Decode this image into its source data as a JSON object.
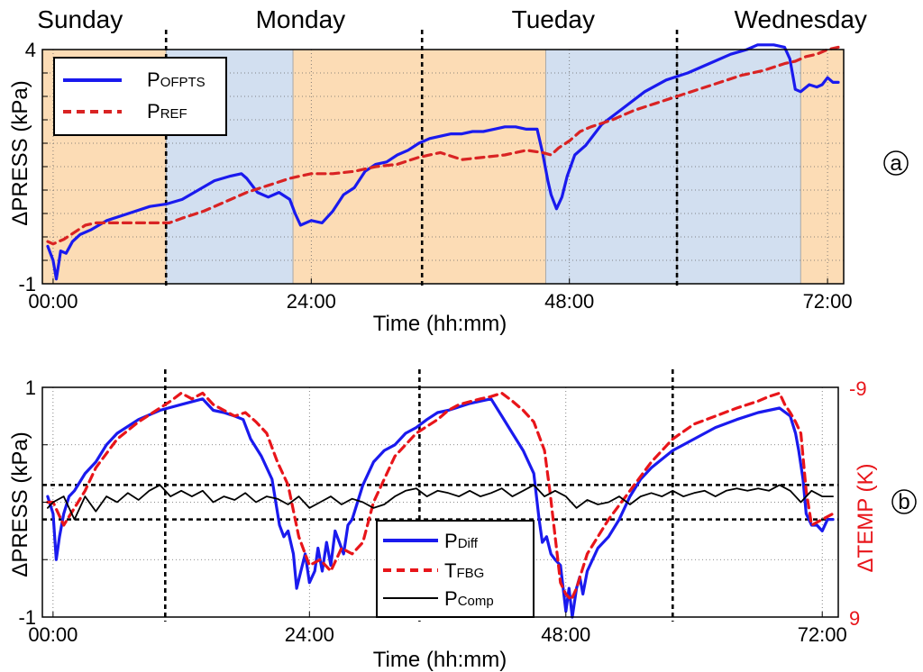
{
  "chart_data": [
    {
      "type": "line",
      "panel_label": "a",
      "xlabel": "Time (hh:mm)",
      "ylabel": "ΔPRESS (kPa)",
      "xlim": [
        -1,
        73.5
      ],
      "ylim": [
        -1,
        4
      ],
      "x_ticks": [
        0,
        24,
        48,
        72
      ],
      "x_tick_labels": [
        "00:00",
        "24:00",
        "48:00",
        "72:00"
      ],
      "y_tick_labels": [
        {
          "v": 4,
          "label": "4"
        },
        {
          "v": -1,
          "label": "-1"
        }
      ],
      "y_grid": [
        -1,
        -0.5,
        0,
        0.5,
        1,
        1.5,
        2,
        2.5,
        3,
        3.5,
        4
      ],
      "day_labels": [
        {
          "x": 2.5,
          "label": "Sunday"
        },
        {
          "x": 23,
          "label": "Monday"
        },
        {
          "x": 46.5,
          "label": "Tueday"
        },
        {
          "x": 69.5,
          "label": "Wednesday"
        }
      ],
      "day_boundaries": [
        10.5,
        34.3,
        58
      ],
      "shading": [
        {
          "x0": -1,
          "x1": 10.5,
          "color": "#fcdcb5"
        },
        {
          "x0": 10.5,
          "x1": 22.3,
          "color": "#d2dff0"
        },
        {
          "x0": 22.3,
          "x1": 45.8,
          "color": "#fcdcb5"
        },
        {
          "x0": 45.8,
          "x1": 58,
          "color": "#d2dff0"
        },
        {
          "x0": 58,
          "x1": 69.5,
          "color": "#d2dff0"
        },
        {
          "x0": 69.5,
          "x1": 73.5,
          "color": "#fcdcb5"
        }
      ],
      "legend_position": "top-left",
      "series": [
        {
          "name_main": "P",
          "name_sub": "OFPTS",
          "color": "#1a1aee",
          "dash": "solid",
          "x": [
            -0.5,
            0,
            0.3,
            0.7,
            1.2,
            1.8,
            2.5,
            3.5,
            5,
            7,
            9,
            10.5,
            12,
            13.5,
            15,
            16.5,
            17.5,
            18,
            19,
            20,
            21,
            22,
            22.5,
            23,
            24,
            25,
            26,
            27,
            28,
            29,
            30,
            31,
            32,
            33,
            34,
            35,
            36,
            37,
            38,
            39,
            40,
            41,
            42,
            43,
            44,
            45,
            45.5,
            46,
            46.3,
            46.8,
            47.3,
            47.8,
            48.5,
            49.5,
            51,
            53,
            55,
            57,
            59,
            61,
            63,
            64.5,
            65.5,
            67,
            68,
            68.5,
            69,
            69.5,
            70.3,
            71,
            71.5,
            72,
            72.5,
            73
          ],
          "y": [
            -0.2,
            -0.5,
            -0.9,
            -0.3,
            -0.35,
            -0.1,
            0.05,
            0.15,
            0.35,
            0.5,
            0.65,
            0.7,
            0.8,
            1.0,
            1.2,
            1.3,
            1.35,
            1.25,
            0.95,
            0.85,
            0.95,
            0.8,
            0.5,
            0.25,
            0.35,
            0.3,
            0.55,
            0.9,
            1.05,
            1.4,
            1.55,
            1.6,
            1.75,
            1.85,
            2.0,
            2.1,
            2.15,
            2.2,
            2.2,
            2.25,
            2.25,
            2.3,
            2.35,
            2.35,
            2.3,
            2.3,
            1.8,
            1.2,
            0.9,
            0.6,
            0.85,
            1.3,
            1.75,
            1.95,
            2.4,
            2.75,
            3.1,
            3.35,
            3.5,
            3.7,
            3.9,
            4.0,
            4.1,
            4.1,
            4.05,
            3.8,
            3.15,
            3.1,
            3.25,
            3.2,
            3.25,
            3.4,
            3.3,
            3.3
          ]
        },
        {
          "name_main": "P",
          "name_sub": "REF",
          "color": "#d92323",
          "dash": "dashed",
          "x": [
            -0.5,
            0,
            1,
            2,
            3,
            4,
            5,
            7,
            9,
            10.3,
            10.8,
            12,
            14,
            16,
            18,
            20,
            22,
            24,
            26,
            28,
            30,
            32,
            34,
            36,
            38,
            40,
            42,
            44,
            45.5,
            46.3,
            47,
            48,
            49,
            50,
            52,
            54,
            56,
            58,
            60,
            62,
            64,
            66,
            68,
            69,
            70,
            71,
            72,
            73
          ],
          "y": [
            -0.1,
            -0.15,
            -0.05,
            0.1,
            0.25,
            0.3,
            0.3,
            0.3,
            0.3,
            0.3,
            0.3,
            0.4,
            0.55,
            0.75,
            0.95,
            1.1,
            1.25,
            1.35,
            1.35,
            1.4,
            1.5,
            1.55,
            1.7,
            1.8,
            1.65,
            1.7,
            1.75,
            1.85,
            1.8,
            1.75,
            1.9,
            2.05,
            2.25,
            2.35,
            2.5,
            2.7,
            2.85,
            3.0,
            3.15,
            3.3,
            3.45,
            3.55,
            3.7,
            3.75,
            3.85,
            3.9,
            4.0,
            4.05
          ]
        }
      ]
    },
    {
      "type": "line",
      "panel_label": "b",
      "xlabel": "Time (hh:mm)",
      "ylabel": "ΔPRESS (kPa)",
      "y2label": "ΔTEMP (K)",
      "xlim": [
        -1,
        73.5
      ],
      "ylim": [
        -1,
        1
      ],
      "y2lim": [
        9,
        -9
      ],
      "x_ticks": [
        0,
        24,
        48,
        72
      ],
      "x_tick_labels": [
        "00:00",
        "24:00",
        "48:00",
        "72:00"
      ],
      "y_tick_labels": [
        {
          "v": 1,
          "label": "1"
        },
        {
          "v": -1,
          "label": "-1"
        }
      ],
      "y2_tick_labels": [
        {
          "v": 1,
          "label": "-9"
        },
        {
          "v": -1,
          "label": "9"
        }
      ],
      "y_grid": [
        -1,
        -0.5,
        0,
        0.5,
        1
      ],
      "day_boundaries": [
        10.5,
        34.3,
        58
      ],
      "threshold_lines": [
        0.15,
        -0.15
      ],
      "legend_position": "bottom-center",
      "series": [
        {
          "name_main": "P",
          "name_sub": "Diff",
          "color": "#1a1aee",
          "dash": "solid",
          "x": [
            -0.5,
            0,
            0.3,
            0.6,
            1,
            1.5,
            2,
            3,
            4,
            5,
            6,
            8,
            10,
            12,
            14,
            15,
            16,
            17,
            17.8,
            18.5,
            19.5,
            20.5,
            21.2,
            21.6,
            22,
            22.5,
            22.8,
            23.2,
            23.6,
            24,
            24.5,
            24.8,
            25.2,
            25.6,
            26,
            26.4,
            26.8,
            27.2,
            27.6,
            28,
            29,
            30,
            31,
            32,
            33,
            34,
            35,
            36,
            37,
            38,
            39,
            40,
            41,
            42,
            43,
            44,
            45,
            45.5,
            45.8,
            46.2,
            46.6,
            47,
            47.5,
            48,
            48.3,
            48.6,
            49,
            49.3,
            49.6,
            50,
            51,
            52,
            53,
            54,
            55,
            56,
            58,
            60,
            62,
            64,
            66,
            68,
            69,
            69.5,
            69.8,
            70.2,
            70.5,
            71,
            71.5,
            72,
            72.5,
            73
          ],
          "y": [
            0.05,
            -0.1,
            -0.5,
            -0.3,
            -0.1,
            0.05,
            0.1,
            0.25,
            0.35,
            0.5,
            0.6,
            0.72,
            0.8,
            0.85,
            0.9,
            0.8,
            0.78,
            0.75,
            0.72,
            0.55,
            0.4,
            0.2,
            -0.2,
            -0.3,
            -0.25,
            -0.45,
            -0.75,
            -0.6,
            -0.45,
            -0.7,
            -0.6,
            -0.4,
            -0.6,
            -0.35,
            -0.55,
            -0.25,
            -0.35,
            -0.45,
            -0.2,
            -0.15,
            0.15,
            0.35,
            0.45,
            0.5,
            0.6,
            0.65,
            0.72,
            0.78,
            0.8,
            0.83,
            0.86,
            0.88,
            0.9,
            0.75,
            0.6,
            0.45,
            0.25,
            -0.15,
            -0.35,
            -0.3,
            -0.45,
            -0.5,
            -0.55,
            -0.95,
            -0.75,
            -1.0,
            -0.75,
            -0.65,
            -0.8,
            -0.6,
            -0.4,
            -0.3,
            -0.15,
            0.05,
            0.2,
            0.3,
            0.45,
            0.55,
            0.65,
            0.72,
            0.78,
            0.82,
            0.75,
            0.6,
            0.45,
            0.2,
            -0.1,
            -0.2,
            -0.2,
            -0.25,
            -0.15,
            -0.15
          ]
        },
        {
          "name_main": "T",
          "name_sub": "FBG",
          "color": "#e8151a",
          "dash": "dashed",
          "x": [
            -0.5,
            0,
            1,
            2,
            3,
            4,
            6,
            8,
            10,
            11,
            12,
            13,
            14,
            15,
            16,
            17,
            18,
            19,
            20,
            21,
            22,
            23,
            24,
            25,
            26,
            27,
            28,
            29,
            30,
            32,
            34,
            36,
            37,
            38,
            40,
            41,
            42,
            43,
            44,
            45,
            46,
            46.5,
            47,
            47.5,
            48,
            48.5,
            49,
            49.5,
            50,
            51,
            52,
            54,
            56,
            58,
            60,
            62,
            64,
            66,
            67,
            68,
            68.5,
            69,
            69.5,
            70,
            70.5,
            71,
            72,
            73
          ],
          "y": [
            0.0,
            0.0,
            -0.2,
            -0.05,
            0.1,
            0.3,
            0.55,
            0.7,
            0.82,
            0.88,
            0.95,
            0.9,
            0.95,
            0.85,
            0.8,
            0.75,
            0.78,
            0.7,
            0.6,
            0.35,
            0.15,
            -0.3,
            -0.55,
            -0.5,
            -0.6,
            -0.4,
            -0.45,
            -0.35,
            0.0,
            0.4,
            0.6,
            0.72,
            0.8,
            0.85,
            0.9,
            0.92,
            0.95,
            0.88,
            0.8,
            0.7,
            0.45,
            0.1,
            -0.3,
            -0.7,
            -0.8,
            -0.85,
            -0.75,
            -0.6,
            -0.45,
            -0.3,
            -0.15,
            0.1,
            0.35,
            0.55,
            0.68,
            0.75,
            0.82,
            0.88,
            0.92,
            0.95,
            0.85,
            0.78,
            0.7,
            0.6,
            0.1,
            -0.2,
            -0.15,
            -0.1
          ]
        },
        {
          "name_main": "P",
          "name_sub": "Comp",
          "color": "#000000",
          "dash": "solid",
          "x": [
            -0.5,
            0,
            1,
            2,
            3,
            4,
            5,
            6,
            7,
            8,
            9,
            10,
            11,
            12,
            13,
            14,
            15,
            16,
            17,
            18,
            19,
            20,
            21,
            22,
            23,
            24,
            25,
            26,
            27,
            28,
            29,
            30,
            31,
            32,
            33,
            34,
            35,
            36,
            37,
            38,
            39,
            40,
            41,
            42,
            43,
            44,
            45,
            46,
            47,
            48,
            49,
            50,
            51,
            52,
            53,
            54,
            55,
            56,
            57,
            58,
            59,
            60,
            61,
            62,
            63,
            64,
            65,
            66,
            67,
            68,
            69,
            69.5,
            70,
            71,
            72,
            73
          ],
          "y": [
            -0.05,
            0.0,
            0.05,
            -0.15,
            0.05,
            -0.08,
            0.05,
            0.0,
            0.08,
            0.02,
            0.1,
            0.15,
            0.05,
            0.1,
            0.05,
            0.1,
            0.0,
            0.05,
            0.02,
            0.08,
            0.0,
            0.05,
            0.03,
            -0.02,
            0.05,
            -0.05,
            0.0,
            0.05,
            -0.02,
            0.03,
            0.0,
            -0.05,
            -0.02,
            0.05,
            0.1,
            0.12,
            0.05,
            0.1,
            0.08,
            0.05,
            0.1,
            0.05,
            0.08,
            0.12,
            0.05,
            0.1,
            0.15,
            0.05,
            0.1,
            0.05,
            -0.05,
            0.02,
            -0.02,
            0.0,
            0.05,
            -0.02,
            0.05,
            0.08,
            0.05,
            0.1,
            0.05,
            0.08,
            0.1,
            0.05,
            0.1,
            0.12,
            0.1,
            0.12,
            0.1,
            0.15,
            0.1,
            0.05,
            0.0,
            0.1,
            0.05,
            0.05
          ]
        }
      ]
    }
  ]
}
